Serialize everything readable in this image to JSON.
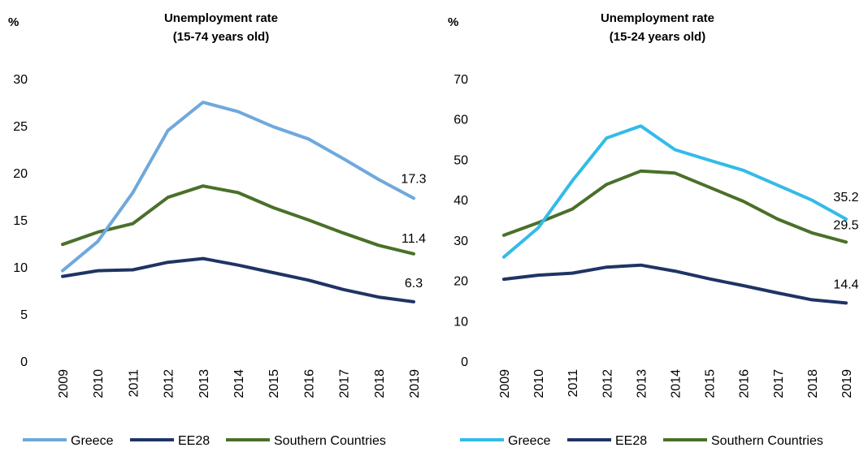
{
  "chart_data": [
    {
      "type": "line",
      "title_line1": "Unemployment rate",
      "title_line2": "(15-74 years old)",
      "unit": "%",
      "categories": [
        "2009",
        "2010",
        "2011",
        "2012",
        "2013",
        "2014",
        "2015",
        "2016",
        "2017",
        "2018",
        "2019"
      ],
      "ylim": [
        0,
        30
      ],
      "yticks": [
        0,
        5,
        10,
        15,
        20,
        25,
        30
      ],
      "grid": false,
      "legend_position": "bottom",
      "series": [
        {
          "name": "Greece",
          "color": "#6fa8dc",
          "values": [
            9.6,
            12.7,
            17.9,
            24.5,
            27.5,
            26.5,
            24.9,
            23.6,
            21.5,
            19.3,
            17.3
          ],
          "end_label": "17.3"
        },
        {
          "name": "EE28",
          "color": "#1f3464",
          "values": [
            9.0,
            9.6,
            9.7,
            10.5,
            10.9,
            10.2,
            9.4,
            8.6,
            7.6,
            6.8,
            6.3
          ],
          "end_label": "6.3"
        },
        {
          "name": "Southern Countries",
          "color": "#4a7029",
          "values": [
            12.4,
            13.7,
            14.6,
            17.4,
            18.6,
            17.9,
            16.3,
            15.0,
            13.6,
            12.3,
            11.4
          ],
          "end_label": "11.4"
        }
      ]
    },
    {
      "type": "line",
      "title_line1": "Unemployment rate",
      "title_line2": "(15-24 years old)",
      "unit": "%",
      "categories": [
        "2009",
        "2010",
        "2011",
        "2012",
        "2013",
        "2014",
        "2015",
        "2016",
        "2017",
        "2018",
        "2019"
      ],
      "ylim": [
        0,
        70
      ],
      "yticks": [
        0,
        10,
        20,
        30,
        40,
        50,
        60,
        70
      ],
      "grid": false,
      "legend_position": "bottom",
      "series": [
        {
          "name": "Greece",
          "color": "#33bbe8",
          "values": [
            25.8,
            33.0,
            44.7,
            55.3,
            58.3,
            52.4,
            49.8,
            47.3,
            43.6,
            39.9,
            35.2
          ],
          "end_label": "35.2"
        },
        {
          "name": "EE28",
          "color": "#1f3464",
          "values": [
            20.3,
            21.3,
            21.8,
            23.3,
            23.8,
            22.3,
            20.4,
            18.7,
            16.9,
            15.2,
            14.4
          ],
          "end_label": "14.4"
        },
        {
          "name": "Southern Countries",
          "color": "#4a7029",
          "values": [
            31.2,
            34.3,
            37.7,
            43.8,
            47.1,
            46.6,
            43.1,
            39.6,
            35.2,
            31.8,
            29.5
          ],
          "end_label": "29.5"
        }
      ]
    }
  ]
}
